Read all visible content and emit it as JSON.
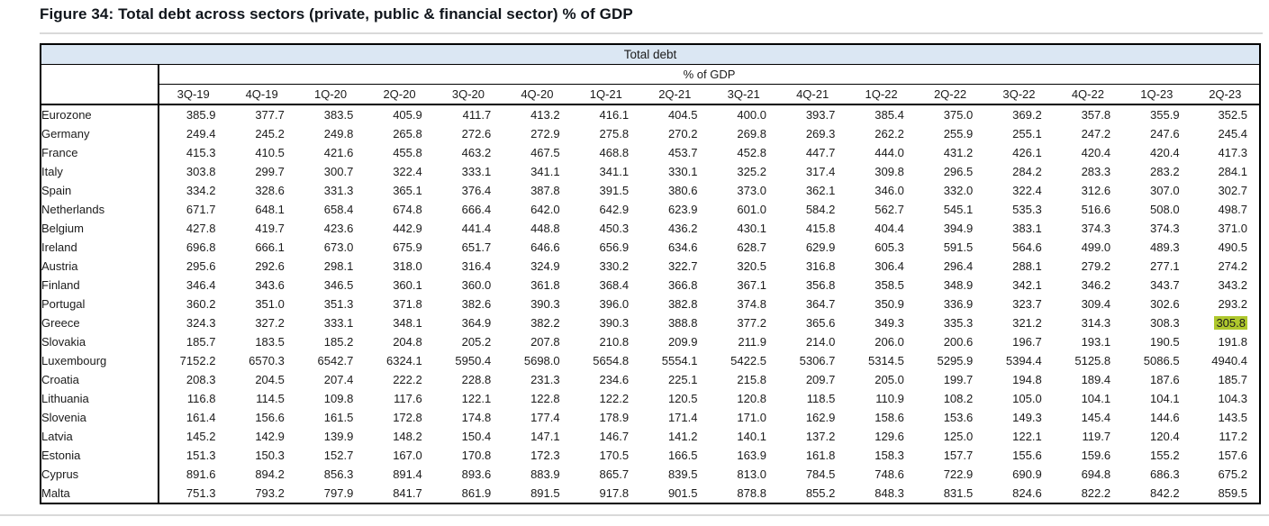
{
  "figure": {
    "title": "Figure 34: Total debt across sectors (private, public & financial sector) % of GDP"
  },
  "colors": {
    "band_bg": "#dbe7f3",
    "highlight_bg": "#afc82d",
    "border": "#000000",
    "rule_gray": "#d9d9d9"
  },
  "chart_data": {
    "type": "table",
    "title": "Total debt",
    "unit_label": "% of GDP",
    "columns": [
      "3Q-19",
      "4Q-19",
      "1Q-20",
      "2Q-20",
      "3Q-20",
      "4Q-20",
      "1Q-21",
      "2Q-21",
      "3Q-21",
      "4Q-21",
      "1Q-22",
      "2Q-22",
      "3Q-22",
      "4Q-22",
      "1Q-23",
      "2Q-23"
    ],
    "rows": [
      {
        "name": "Eurozone",
        "values": [
          385.9,
          377.7,
          383.5,
          405.9,
          411.7,
          413.2,
          416.1,
          404.5,
          400.0,
          393.7,
          385.4,
          375.0,
          369.2,
          357.8,
          355.9,
          352.5
        ]
      },
      {
        "name": "Germany",
        "values": [
          249.4,
          245.2,
          249.8,
          265.8,
          272.6,
          272.9,
          275.8,
          270.2,
          269.8,
          269.3,
          262.2,
          255.9,
          255.1,
          247.2,
          247.6,
          245.4
        ]
      },
      {
        "name": "France",
        "values": [
          415.3,
          410.5,
          421.6,
          455.8,
          463.2,
          467.5,
          468.8,
          453.7,
          452.8,
          447.7,
          444.0,
          431.2,
          426.1,
          420.4,
          420.4,
          417.3
        ]
      },
      {
        "name": "Italy",
        "values": [
          303.8,
          299.7,
          300.7,
          322.4,
          333.1,
          341.1,
          341.1,
          330.1,
          325.2,
          317.4,
          309.8,
          296.5,
          284.2,
          283.3,
          283.2,
          284.1
        ]
      },
      {
        "name": "Spain",
        "values": [
          334.2,
          328.6,
          331.3,
          365.1,
          376.4,
          387.8,
          391.5,
          380.6,
          373.0,
          362.1,
          346.0,
          332.0,
          322.4,
          312.6,
          307.0,
          302.7
        ]
      },
      {
        "name": "Netherlands",
        "values": [
          671.7,
          648.1,
          658.4,
          674.8,
          666.4,
          642.0,
          642.9,
          623.9,
          601.0,
          584.2,
          562.7,
          545.1,
          535.3,
          516.6,
          508.0,
          498.7
        ]
      },
      {
        "name": "Belgium",
        "values": [
          427.8,
          419.7,
          423.6,
          442.9,
          441.4,
          448.8,
          450.3,
          436.2,
          430.1,
          415.8,
          404.4,
          394.9,
          383.1,
          374.3,
          374.3,
          371.0
        ]
      },
      {
        "name": "Ireland",
        "values": [
          696.8,
          666.1,
          673.0,
          675.9,
          651.7,
          646.6,
          656.9,
          634.6,
          628.7,
          629.9,
          605.3,
          591.5,
          564.6,
          499.0,
          489.3,
          490.5
        ]
      },
      {
        "name": "Austria",
        "values": [
          295.6,
          292.6,
          298.1,
          318.0,
          316.4,
          324.9,
          330.2,
          322.7,
          320.5,
          316.8,
          306.4,
          296.4,
          288.1,
          279.2,
          277.1,
          274.2
        ]
      },
      {
        "name": "Finland",
        "values": [
          346.4,
          343.6,
          346.5,
          360.1,
          360.0,
          361.8,
          368.4,
          366.8,
          367.1,
          356.8,
          358.5,
          348.9,
          342.1,
          346.2,
          343.7,
          343.2
        ]
      },
      {
        "name": "Portugal",
        "values": [
          360.2,
          351.0,
          351.3,
          371.8,
          382.6,
          390.3,
          396.0,
          382.8,
          374.8,
          364.7,
          350.9,
          336.9,
          323.7,
          309.4,
          302.6,
          293.2
        ]
      },
      {
        "name": "Greece",
        "values": [
          324.3,
          327.2,
          333.1,
          348.1,
          364.9,
          382.2,
          390.3,
          388.8,
          377.2,
          365.6,
          349.3,
          335.3,
          321.2,
          314.3,
          308.3,
          305.8
        ]
      },
      {
        "name": "Slovakia",
        "values": [
          185.7,
          183.5,
          185.2,
          204.8,
          205.2,
          207.8,
          210.8,
          209.9,
          211.9,
          214.0,
          206.0,
          200.6,
          196.7,
          193.1,
          190.5,
          191.8
        ]
      },
      {
        "name": "Luxembourg",
        "values": [
          7152.2,
          6570.3,
          6542.7,
          6324.1,
          5950.4,
          5698.0,
          5654.8,
          5554.1,
          5422.5,
          5306.7,
          5314.5,
          5295.9,
          5394.4,
          5125.8,
          5086.5,
          4940.4
        ]
      },
      {
        "name": "Croatia",
        "values": [
          208.3,
          204.5,
          207.4,
          222.2,
          228.8,
          231.3,
          234.6,
          225.1,
          215.8,
          209.7,
          205.0,
          199.7,
          194.8,
          189.4,
          187.6,
          185.7
        ]
      },
      {
        "name": "Lithuania",
        "values": [
          116.8,
          114.5,
          109.8,
          117.6,
          122.1,
          122.8,
          122.2,
          120.5,
          120.8,
          118.5,
          110.9,
          108.2,
          105.0,
          104.1,
          104.1,
          104.3
        ]
      },
      {
        "name": "Slovenia",
        "values": [
          161.4,
          156.6,
          161.5,
          172.8,
          174.8,
          177.4,
          178.9,
          171.4,
          171.0,
          162.9,
          158.6,
          153.6,
          149.3,
          145.4,
          144.6,
          143.5
        ]
      },
      {
        "name": "Latvia",
        "values": [
          145.2,
          142.9,
          139.9,
          148.2,
          150.4,
          147.1,
          146.7,
          141.2,
          140.1,
          137.2,
          129.6,
          125.0,
          122.1,
          119.7,
          120.4,
          117.2
        ]
      },
      {
        "name": "Estonia",
        "values": [
          151.3,
          150.3,
          152.7,
          167.0,
          170.8,
          172.3,
          170.5,
          166.5,
          163.9,
          161.8,
          158.3,
          157.7,
          155.6,
          159.6,
          155.2,
          157.6
        ]
      },
      {
        "name": "Cyprus",
        "values": [
          891.6,
          894.2,
          856.3,
          891.4,
          893.6,
          883.9,
          865.7,
          839.5,
          813.0,
          784.5,
          748.6,
          722.9,
          690.9,
          694.8,
          686.3,
          675.2
        ]
      },
      {
        "name": "Malta",
        "values": [
          751.3,
          793.2,
          797.9,
          841.7,
          861.9,
          891.5,
          917.8,
          901.5,
          878.8,
          855.2,
          848.3,
          831.5,
          824.6,
          822.2,
          842.2,
          859.5
        ]
      }
    ],
    "highlight": {
      "row": "Greece",
      "column": "2Q-23",
      "value": 305.8,
      "row_index": 11,
      "col_index": 15
    }
  }
}
